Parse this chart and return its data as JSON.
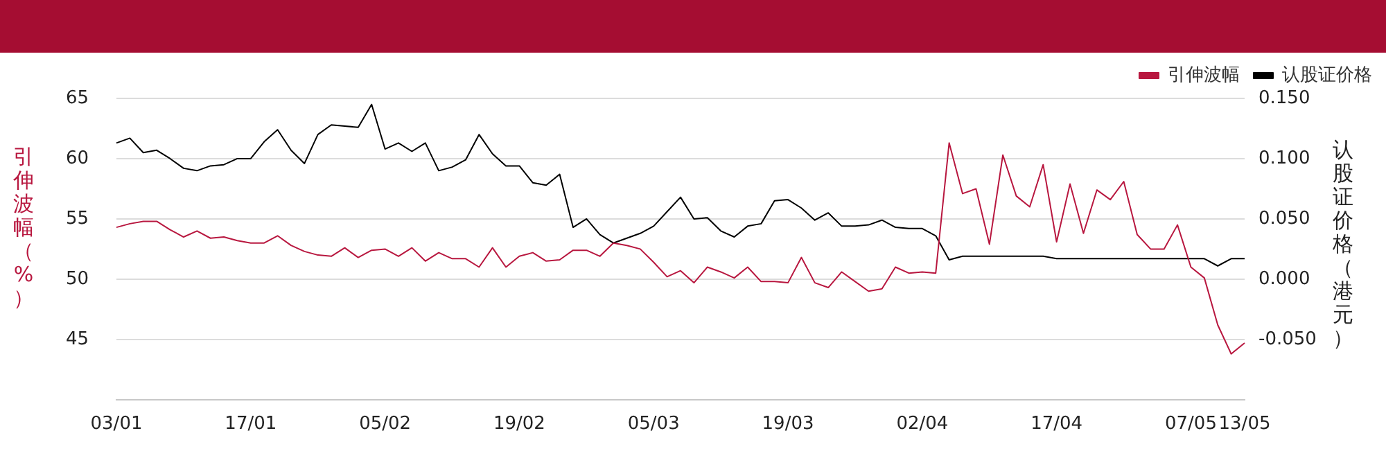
{
  "chart_data": {
    "type": "line",
    "categories": [
      "03/01",
      null,
      null,
      null,
      null,
      null,
      null,
      null,
      null,
      null,
      "17/01",
      null,
      null,
      null,
      null,
      null,
      null,
      null,
      null,
      null,
      "05/02",
      null,
      null,
      null,
      null,
      null,
      null,
      null,
      null,
      null,
      "19/02",
      null,
      null,
      null,
      null,
      null,
      null,
      null,
      null,
      null,
      "05/03",
      null,
      null,
      null,
      null,
      null,
      null,
      null,
      null,
      null,
      "19/03",
      null,
      null,
      null,
      null,
      null,
      null,
      null,
      null,
      null,
      "02/04",
      null,
      null,
      null,
      null,
      null,
      null,
      null,
      null,
      null,
      "17/04",
      null,
      null,
      null,
      null,
      null,
      null,
      null,
      null,
      null,
      "07/05",
      null,
      null,
      null,
      "13/05"
    ],
    "series": [
      {
        "name": "引伸波幅",
        "color": "#b8173f",
        "values": [
          54.3,
          54.6,
          54.8,
          54.8,
          54.1,
          53.5,
          54.0,
          53.4,
          53.5,
          53.2,
          53.0,
          53.0,
          53.6,
          52.8,
          52.3,
          52.0,
          51.9,
          52.6,
          51.8,
          52.4,
          52.5,
          51.9,
          52.6,
          51.5,
          52.2,
          51.7,
          51.7,
          51.0,
          52.6,
          51.0,
          51.9,
          52.2,
          51.5,
          51.6,
          52.4,
          52.4,
          51.9,
          53.0,
          52.8,
          52.5,
          51.4,
          50.2,
          50.7,
          49.7,
          51.0,
          50.6,
          50.1,
          51.0,
          49.8,
          49.8,
          49.7,
          51.8,
          49.7,
          49.3,
          50.6,
          49.8,
          49.0,
          49.2,
          51.0,
          50.5,
          50.6,
          50.5,
          61.3,
          57.1,
          57.5,
          52.9,
          60.3,
          56.9,
          56.0,
          59.5,
          53.1,
          57.9,
          53.8,
          57.4,
          56.6,
          58.1,
          53.7,
          52.5,
          52.5,
          54.5,
          51.0,
          50.1,
          46.2,
          43.8,
          44.7
        ]
      },
      {
        "name": "认股证价格",
        "color": "#000000",
        "axis": "y2",
        "values": [
          0.113,
          0.117,
          0.105,
          0.107,
          0.1,
          0.092,
          0.09,
          0.094,
          0.095,
          0.1,
          0.1,
          0.114,
          0.124,
          0.107,
          0.096,
          0.12,
          0.128,
          0.127,
          0.126,
          0.145,
          0.108,
          0.113,
          0.106,
          0.113,
          0.09,
          0.093,
          0.099,
          0.12,
          0.104,
          0.094,
          0.094,
          0.08,
          0.078,
          0.087,
          0.043,
          0.05,
          0.037,
          0.03,
          0.034,
          0.038,
          0.044,
          0.056,
          0.068,
          0.05,
          0.051,
          0.04,
          0.035,
          0.044,
          0.046,
          0.065,
          0.066,
          0.059,
          0.049,
          0.055,
          0.044,
          0.044,
          0.045,
          0.049,
          0.043,
          0.042,
          0.042,
          0.036,
          0.016,
          0.019,
          0.019,
          0.019,
          0.019,
          0.019,
          0.019,
          0.019,
          0.017,
          0.017,
          0.017,
          0.017,
          0.017,
          0.017,
          0.017,
          0.017,
          0.017,
          0.017,
          0.017,
          0.017,
          0.011,
          0.017,
          0.017
        ]
      }
    ],
    "ylabel": "引伸波幅（%）",
    "y2label": "认股证价格（港元）",
    "ylim": [
      40,
      65
    ],
    "yticks": [
      45,
      50,
      55,
      60,
      65
    ],
    "y2lim": [
      -0.1,
      0.15
    ],
    "y2ticks": [
      {
        "value": -0.05,
        "label": "-0.050"
      },
      {
        "value": 0,
        "label": "0.000"
      },
      {
        "value": 0.05,
        "label": "0.050"
      },
      {
        "value": 0.1,
        "label": "0.100"
      },
      {
        "value": 0.15,
        "label": "0.150"
      }
    ],
    "grid": "y",
    "legend": "top right",
    "marker": "none",
    "line_style": "solid"
  }
}
